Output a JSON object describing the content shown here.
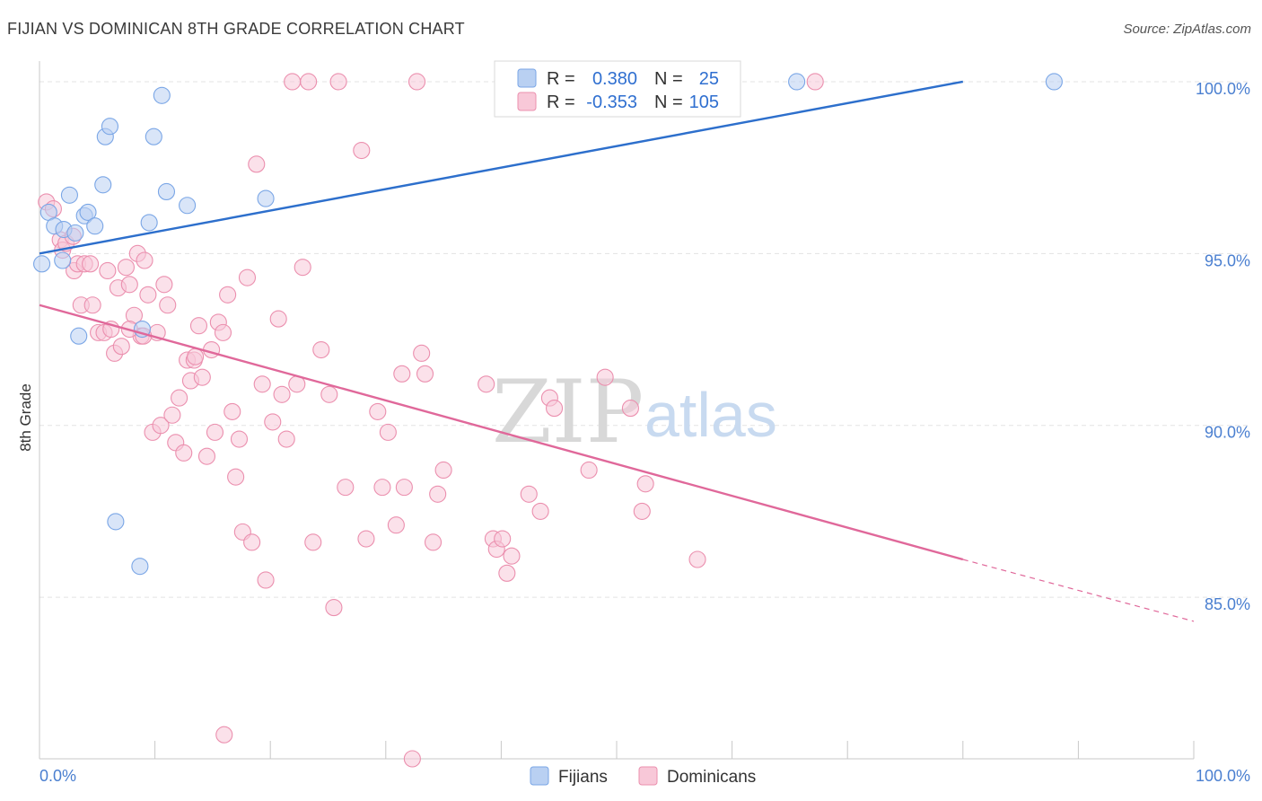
{
  "header": {
    "title": "FIJIAN VS DOMINICAN 8TH GRADE CORRELATION CHART",
    "source": "Source: ZipAtlas.com"
  },
  "legend_top": {
    "rows": [
      {
        "r_label": "R =",
        "r_value": "0.380",
        "n_label": "N =",
        "n_value": "25",
        "color": "#a9c4ee"
      },
      {
        "r_label": "R =",
        "r_value": "-0.353",
        "n_label": "N =",
        "n_value": "105",
        "color": "#f5b8cb"
      }
    ]
  },
  "watermark": {
    "zip": "ZIP",
    "atlas": "atlas"
  },
  "chart_data": {
    "type": "scatter",
    "title": "FIJIAN VS DOMINICAN 8TH GRADE CORRELATION CHART",
    "xlabel": "",
    "ylabel": "8th Grade",
    "xlim": [
      0,
      100
    ],
    "ylim": [
      80.3,
      100.6
    ],
    "x_tick_labels": [
      "0.0%",
      "100.0%"
    ],
    "y_ticks": [
      {
        "value": 100,
        "label": "100.0%"
      },
      {
        "value": 95,
        "label": "95.0%"
      },
      {
        "value": 90,
        "label": "90.0%"
      },
      {
        "value": 85,
        "label": "85.0%"
      }
    ],
    "grid": true,
    "legend_position": "bottom",
    "series": [
      {
        "name": "Fijians",
        "color": "#7aa6e6",
        "fill": "#b9d0f2",
        "line_color": "#2d6fcc",
        "trend": {
          "x0": 0,
          "y0": 95.0,
          "x1": 80,
          "y1": 100.0,
          "dash_to": null
        },
        "points": [
          [
            0.2,
            94.7
          ],
          [
            0.8,
            96.2
          ],
          [
            1.3,
            95.8
          ],
          [
            2.1,
            95.7
          ],
          [
            2.0,
            94.8
          ],
          [
            2.6,
            96.7
          ],
          [
            3.1,
            95.6
          ],
          [
            3.4,
            92.6
          ],
          [
            3.9,
            96.1
          ],
          [
            4.2,
            96.2
          ],
          [
            4.8,
            95.8
          ],
          [
            5.5,
            97.0
          ],
          [
            5.7,
            98.4
          ],
          [
            6.1,
            98.7
          ],
          [
            6.6,
            87.2
          ],
          [
            8.7,
            85.9
          ],
          [
            8.9,
            92.8
          ],
          [
            9.5,
            95.9
          ],
          [
            9.9,
            98.4
          ],
          [
            10.6,
            99.6
          ],
          [
            11.0,
            96.8
          ],
          [
            12.8,
            96.4
          ],
          [
            19.6,
            96.6
          ],
          [
            65.6,
            100.0
          ],
          [
            87.9,
            100.0
          ]
        ]
      },
      {
        "name": "Dominicans",
        "color": "#eb8fae",
        "fill": "#f8c8d8",
        "line_color": "#e0689a",
        "trend": {
          "x0": 0,
          "y0": 93.5,
          "x1": 80,
          "y1": 86.1,
          "dash_to": {
            "x": 100,
            "y": 84.3
          }
        },
        "points": [
          [
            0.6,
            96.5
          ],
          [
            1.2,
            96.3
          ],
          [
            1.8,
            95.4
          ],
          [
            2.0,
            95.1
          ],
          [
            2.3,
            95.3
          ],
          [
            2.9,
            95.5
          ],
          [
            3.0,
            94.5
          ],
          [
            3.3,
            94.7
          ],
          [
            3.6,
            93.5
          ],
          [
            3.9,
            94.7
          ],
          [
            4.4,
            94.7
          ],
          [
            4.6,
            93.5
          ],
          [
            5.1,
            92.7
          ],
          [
            5.6,
            92.7
          ],
          [
            5.9,
            94.5
          ],
          [
            6.2,
            92.8
          ],
          [
            6.5,
            92.1
          ],
          [
            6.8,
            94.0
          ],
          [
            7.1,
            92.3
          ],
          [
            7.5,
            94.6
          ],
          [
            7.8,
            94.1
          ],
          [
            8.2,
            93.2
          ],
          [
            8.5,
            95.0
          ],
          [
            8.8,
            92.6
          ],
          [
            9.1,
            94.8
          ],
          [
            9.4,
            93.8
          ],
          [
            9.8,
            89.8
          ],
          [
            10.2,
            92.7
          ],
          [
            10.5,
            90.0
          ],
          [
            10.8,
            94.1
          ],
          [
            11.1,
            93.5
          ],
          [
            11.5,
            90.3
          ],
          [
            11.8,
            89.5
          ],
          [
            12.1,
            90.8
          ],
          [
            12.5,
            89.2
          ],
          [
            12.8,
            91.9
          ],
          [
            13.1,
            91.3
          ],
          [
            13.4,
            91.9
          ],
          [
            13.8,
            92.9
          ],
          [
            14.1,
            91.4
          ],
          [
            14.5,
            89.1
          ],
          [
            14.9,
            92.2
          ],
          [
            15.2,
            89.8
          ],
          [
            15.5,
            93.0
          ],
          [
            15.9,
            92.7
          ],
          [
            16.3,
            93.8
          ],
          [
            16.7,
            90.4
          ],
          [
            17.0,
            88.5
          ],
          [
            17.3,
            89.6
          ],
          [
            17.6,
            86.9
          ],
          [
            18.0,
            94.3
          ],
          [
            18.4,
            86.6
          ],
          [
            18.8,
            97.6
          ],
          [
            19.3,
            91.2
          ],
          [
            19.6,
            85.5
          ],
          [
            20.2,
            90.1
          ],
          [
            20.7,
            93.1
          ],
          [
            21.0,
            90.9
          ],
          [
            21.4,
            89.6
          ],
          [
            21.9,
            100.0
          ],
          [
            22.3,
            91.2
          ],
          [
            22.8,
            94.6
          ],
          [
            23.3,
            100.0
          ],
          [
            23.7,
            86.6
          ],
          [
            24.4,
            92.2
          ],
          [
            25.1,
            90.9
          ],
          [
            25.5,
            84.7
          ],
          [
            25.9,
            100.0
          ],
          [
            26.5,
            88.2
          ],
          [
            27.9,
            98.0
          ],
          [
            28.3,
            86.7
          ],
          [
            29.3,
            90.4
          ],
          [
            29.7,
            88.2
          ],
          [
            30.2,
            89.8
          ],
          [
            30.9,
            87.1
          ],
          [
            31.4,
            91.5
          ],
          [
            31.6,
            88.2
          ],
          [
            32.3,
            80.3
          ],
          [
            32.7,
            100.0
          ],
          [
            33.1,
            92.1
          ],
          [
            33.4,
            91.5
          ],
          [
            34.1,
            86.6
          ],
          [
            34.5,
            88.0
          ],
          [
            35.0,
            88.7
          ],
          [
            38.7,
            91.2
          ],
          [
            39.3,
            86.7
          ],
          [
            39.6,
            86.4
          ],
          [
            40.1,
            86.7
          ],
          [
            40.5,
            85.7
          ],
          [
            40.9,
            86.2
          ],
          [
            42.4,
            88.0
          ],
          [
            43.4,
            87.5
          ],
          [
            44.2,
            90.8
          ],
          [
            44.6,
            90.5
          ],
          [
            47.6,
            88.7
          ],
          [
            49.0,
            91.4
          ],
          [
            51.2,
            90.5
          ],
          [
            52.2,
            87.5
          ],
          [
            52.5,
            88.3
          ],
          [
            57.0,
            86.1
          ],
          [
            16.0,
            81.0
          ],
          [
            67.2,
            100.0
          ],
          [
            9.0,
            92.6
          ],
          [
            7.8,
            92.8
          ],
          [
            13.5,
            92.0
          ]
        ]
      }
    ]
  }
}
